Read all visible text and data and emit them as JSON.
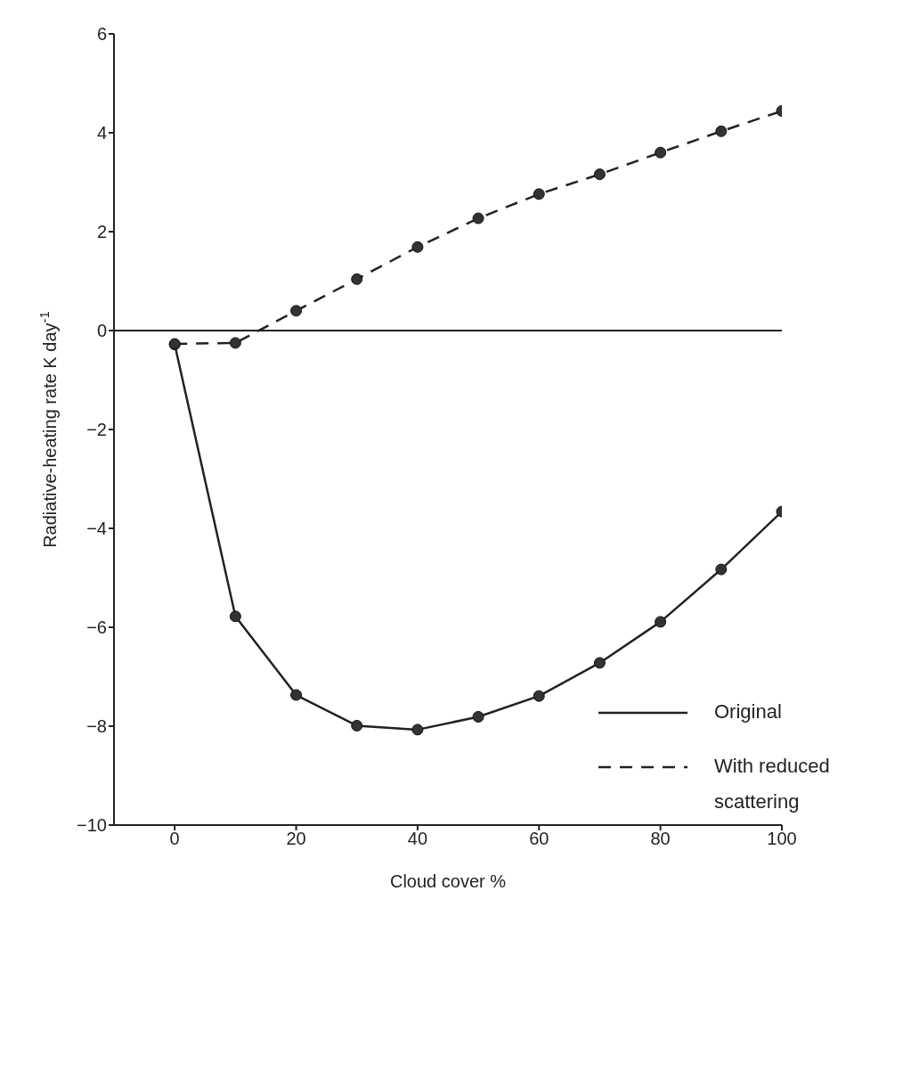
{
  "chart_data": {
    "type": "line",
    "xlabel": "Cloud cover %",
    "ylabel": "Radiative-heating rate K day$^{-1}$",
    "x": [
      0,
      10,
      20,
      30,
      40,
      50,
      60,
      70,
      80,
      90,
      100
    ],
    "series": [
      {
        "name": "Original",
        "color": "#222222",
        "line_style": "solid",
        "values": [
          -0.28,
          -5.78,
          -7.37,
          -7.99,
          -8.07,
          -7.81,
          -7.39,
          -6.72,
          -5.89,
          -4.83,
          -3.66
        ]
      },
      {
        "name": "With reduced scattering",
        "color": "#222222",
        "line_style": "dashed",
        "values": [
          -0.27,
          -0.25,
          0.4,
          1.04,
          1.69,
          2.27,
          2.76,
          3.16,
          3.6,
          4.03,
          4.44
        ]
      }
    ],
    "xlim": [
      -10,
      100
    ],
    "xticks": [
      0,
      20,
      40,
      60,
      80,
      100
    ],
    "ylim": [
      -10,
      6
    ],
    "yticks": [
      -10,
      -8,
      -6,
      -4,
      -2,
      0,
      2,
      4,
      6
    ],
    "ref_lines": [
      {
        "axis": "y",
        "value": 0,
        "color": "#222222",
        "line_style": "solid"
      }
    ],
    "marker": "circle",
    "grid": false,
    "legend": "bottom right"
  }
}
